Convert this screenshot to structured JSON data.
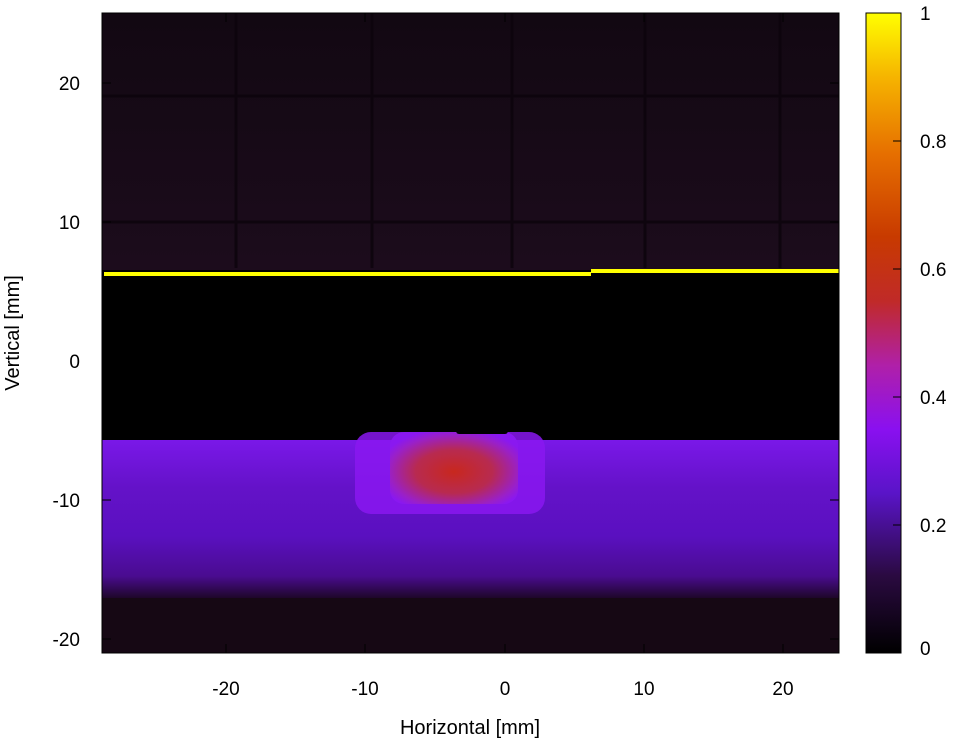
{
  "chart_data": {
    "type": "heatmap",
    "title": "",
    "xlabel": "Horizontal [mm]",
    "ylabel": "Vertical [mm]",
    "xlim": [
      -29,
      24.5
    ],
    "ylim": [
      -21,
      25
    ],
    "xticks": [
      -20,
      -10,
      0,
      10,
      20
    ],
    "yticks": [
      -20,
      -10,
      0,
      10,
      20
    ],
    "xtick_labels": [
      "-20",
      "-10",
      "0",
      "10",
      "20"
    ],
    "ytick_labels": [
      "-20",
      "-10",
      "0",
      "10",
      "20"
    ],
    "colorbar": {
      "range": [
        0,
        1
      ],
      "ticks": [
        0,
        0.2,
        0.4,
        0.6,
        0.8,
        1
      ],
      "tick_labels": [
        "0",
        "0.2",
        "0.4",
        "0.6",
        "0.8",
        "1"
      ],
      "colormap": "gnuplot (black-purple-red-yellow)"
    },
    "features": [
      {
        "name": "upper background",
        "x_range": [
          -29,
          24.5
        ],
        "y_range": [
          6.5,
          25
        ],
        "intensity": 0.03
      },
      {
        "name": "bright horizontal line",
        "x_range": [
          -29,
          24.5
        ],
        "y": 6.2,
        "intensity": 1.0
      },
      {
        "name": "dark gap",
        "x_range": [
          -29,
          24.5
        ],
        "y_range": [
          -5.8,
          6.0
        ],
        "intensity": 0.0
      },
      {
        "name": "horizontal band",
        "x_range": [
          -29,
          24.5
        ],
        "y_range": [
          -17,
          -5.8
        ],
        "intensity": 0.22
      },
      {
        "name": "central hot spot",
        "x_range": [
          -8,
          1
        ],
        "y_range": [
          -10,
          -5
        ],
        "intensity": 0.5
      }
    ],
    "grid": false
  },
  "colors": {
    "background": "#000000",
    "hot_spot": "#c8281e",
    "band": "#6a10d8",
    "line": "#ffff00"
  }
}
